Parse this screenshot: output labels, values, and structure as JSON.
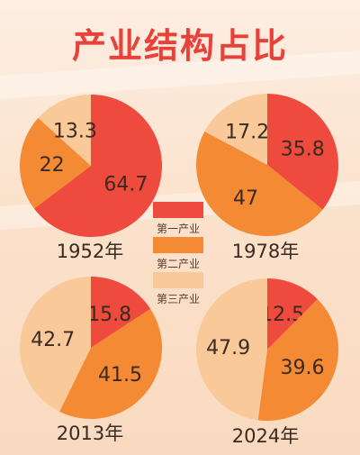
{
  "title": "产业结构占比",
  "colors": {
    "primary": "#ee4a3d",
    "secondary": "#f58a34",
    "tertiary": "#f9c99a"
  },
  "legend": [
    {
      "label": "第一产业",
      "color": "#ee4a3d"
    },
    {
      "label": "第二产业",
      "color": "#f58a34"
    },
    {
      "label": "第三产业",
      "color": "#f9c99a"
    }
  ],
  "chart_data": [
    {
      "type": "pie",
      "title": "1952年",
      "categories": [
        "第一产业",
        "第二产业",
        "第三产业"
      ],
      "values": [
        64.7,
        22,
        13.3
      ],
      "value_labels": [
        "64.7",
        "22",
        "13.3"
      ]
    },
    {
      "type": "pie",
      "title": "1978年",
      "categories": [
        "第一产业",
        "第二产业",
        "第三产业"
      ],
      "values": [
        35.8,
        47,
        17.2
      ],
      "value_labels": [
        "35.8",
        "47",
        "17.2"
      ]
    },
    {
      "type": "pie",
      "title": "2013年",
      "categories": [
        "第一产业",
        "第二产业",
        "第三产业"
      ],
      "values": [
        15.8,
        41.5,
        42.7
      ],
      "value_labels": [
        "15.8",
        "41.5",
        "42.7"
      ]
    },
    {
      "type": "pie",
      "title": "2024年",
      "categories": [
        "第一产业",
        "第二产业",
        "第三产业"
      ],
      "values": [
        12.5,
        39.6,
        47.9
      ],
      "value_labels": [
        "12.5",
        "39.6",
        "47.9"
      ]
    }
  ]
}
